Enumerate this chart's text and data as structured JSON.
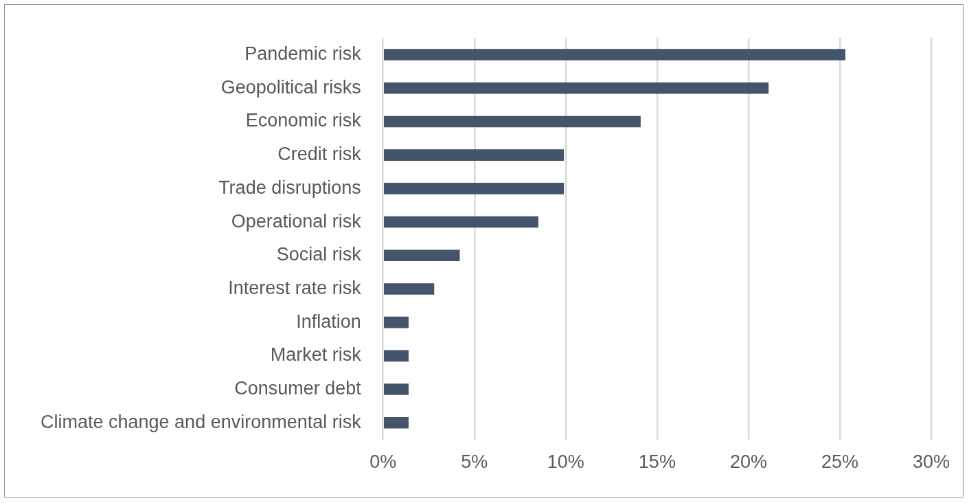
{
  "chart_data": {
    "type": "bar",
    "orientation": "horizontal",
    "categories": [
      "Pandemic risk",
      "Geopolitical risks",
      "Economic risk",
      "Credit risk",
      "Trade disruptions",
      "Operational risk",
      "Social risk",
      "Interest rate risk",
      "Inflation",
      "Market risk",
      "Consumer debt",
      "Climate change and environmental risk"
    ],
    "values": [
      25.3,
      21.1,
      14.1,
      9.9,
      9.9,
      8.5,
      4.2,
      2.8,
      1.4,
      1.4,
      1.4,
      1.4
    ],
    "color": "#44546a",
    "xlim": [
      0,
      30
    ],
    "xticks": [
      {
        "value": 0,
        "label": "0%"
      },
      {
        "value": 5,
        "label": "5%"
      },
      {
        "value": 10,
        "label": "10%"
      },
      {
        "value": 15,
        "label": "15%"
      },
      {
        "value": 20,
        "label": "20%"
      },
      {
        "value": 25,
        "label": "25%"
      },
      {
        "value": 30,
        "label": "30%"
      }
    ],
    "grid": "x",
    "legend": false
  }
}
